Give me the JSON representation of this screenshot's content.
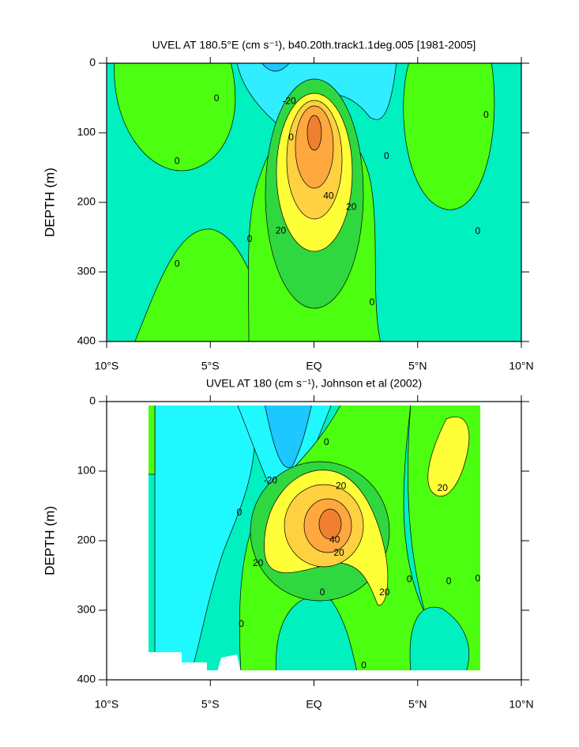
{
  "chart_data": [
    {
      "type": "contour",
      "title": "UVEL AT 180.5°E (cm s⁻¹), b40.20th.track1.1deg.005 [1981-2005]",
      "ylabel": "DEPTH (m)",
      "xlim": [
        -10,
        10
      ],
      "ylim": [
        400,
        0
      ],
      "xticks": [
        {
          "value": -10,
          "label": "10°S"
        },
        {
          "value": -5,
          "label": "5°S"
        },
        {
          "value": 0,
          "label": "EQ"
        },
        {
          "value": 5,
          "label": "5°N"
        },
        {
          "value": 10,
          "label": "10°N"
        }
      ],
      "yticks": [
        0,
        100,
        200,
        300,
        400
      ],
      "fill_colors": [
        "#1cc8ff",
        "#30eeff",
        "#00f0c0",
        "#4cff10",
        "#30d840",
        "#ffff38",
        "#ffd040",
        "#ffa840",
        "#f08030"
      ],
      "contour_labels": [
        {
          "x": -1.2,
          "y": 55,
          "value": -20
        },
        {
          "x": -4.7,
          "y": 51,
          "value": 0
        },
        {
          "x": -6.6,
          "y": 141,
          "value": 0
        },
        {
          "x": -1.1,
          "y": 107,
          "value": 0
        },
        {
          "x": 3.5,
          "y": 134,
          "value": 0
        },
        {
          "x": 8.3,
          "y": 75,
          "value": 0
        },
        {
          "x": -3.1,
          "y": 253,
          "value": 0
        },
        {
          "x": -6.6,
          "y": 289,
          "value": 0
        },
        {
          "x": 2.8,
          "y": 344,
          "value": 0
        },
        {
          "x": 7.9,
          "y": 242,
          "value": 0
        },
        {
          "x": -1.6,
          "y": 241,
          "value": 20
        },
        {
          "x": 1.8,
          "y": 207,
          "value": 20
        },
        {
          "x": 0.7,
          "y": 191,
          "value": 40
        }
      ]
    },
    {
      "type": "contour",
      "title": "UVEL AT 180 (cm s⁻¹), Johnson et al (2002)",
      "ylabel": "DEPTH (m)",
      "xlim": [
        -10,
        10
      ],
      "ylim": [
        400,
        0
      ],
      "xticks": [
        {
          "value": -10,
          "label": "10°S"
        },
        {
          "value": -5,
          "label": "5°S"
        },
        {
          "value": 0,
          "label": "EQ"
        },
        {
          "value": 5,
          "label": "5°N"
        },
        {
          "value": 10,
          "label": "10°N"
        }
      ],
      "yticks": [
        0,
        100,
        200,
        300,
        400
      ],
      "fill_colors": [
        "#1cc8ff",
        "#20f8ff",
        "#00f0c0",
        "#4cff10",
        "#30d840",
        "#ffff38",
        "#ffd040",
        "#ffa840",
        "#f08030"
      ],
      "contour_labels": [
        {
          "x": -2.1,
          "y": 114,
          "value": -20
        },
        {
          "x": 0.6,
          "y": 59,
          "value": 0
        },
        {
          "x": -3.6,
          "y": 160,
          "value": 0
        },
        {
          "x": 1.3,
          "y": 122,
          "value": 20
        },
        {
          "x": 1.0,
          "y": 199,
          "value": 40
        },
        {
          "x": 1.2,
          "y": 218,
          "value": 20
        },
        {
          "x": -2.7,
          "y": 233,
          "value": 20
        },
        {
          "x": 0.4,
          "y": 275,
          "value": 0
        },
        {
          "x": 3.4,
          "y": 275,
          "value": 20
        },
        {
          "x": 6.2,
          "y": 125,
          "value": 20
        },
        {
          "x": 4.6,
          "y": 256,
          "value": 0
        },
        {
          "x": 6.5,
          "y": 259,
          "value": 0
        },
        {
          "x": 7.9,
          "y": 255,
          "value": 0
        },
        {
          "x": -3.5,
          "y": 320,
          "value": 0
        },
        {
          "x": 2.4,
          "y": 380,
          "value": 0
        }
      ]
    }
  ]
}
